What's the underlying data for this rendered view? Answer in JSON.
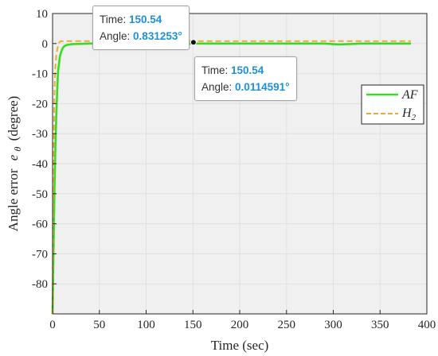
{
  "chart_data": {
    "type": "line",
    "xlabel": "Time (sec)",
    "ylabel_main": "Angle error",
    "ylabel_symbol": "e",
    "ylabel_subscript": "θ",
    "ylabel_unit": "(degree)",
    "xlim": [
      0,
      400
    ],
    "ylim": [
      -90,
      10
    ],
    "xticks": [
      0,
      50,
      100,
      150,
      200,
      250,
      300,
      350,
      400
    ],
    "yticks": [
      -80,
      -70,
      -60,
      -50,
      -40,
      -30,
      -20,
      -10,
      0,
      10
    ],
    "grid": true,
    "legend_position": "top-right",
    "series": [
      {
        "name": "AF",
        "color": "#33dd22",
        "style": "solid",
        "x": [
          0,
          1,
          2,
          3,
          4,
          5,
          6,
          8,
          10,
          12,
          15,
          20,
          40,
          80,
          100,
          115,
          150.54,
          200,
          250,
          290,
          306,
          330,
          383
        ],
        "y": [
          -90,
          -70,
          -50,
          -35,
          -24,
          -15,
          -9,
          -4,
          -2,
          -1,
          -0.5,
          -0.2,
          0,
          0,
          0,
          -0.3,
          0.0114591,
          0,
          0,
          0,
          -0.3,
          0,
          0
        ]
      },
      {
        "name": "H2",
        "legend_main": "H",
        "legend_subscript": "2",
        "color": "#f2a933",
        "style": "dashed",
        "x": [
          0,
          0.5,
          1,
          1.5,
          2,
          2.5,
          3,
          4,
          5,
          6,
          7,
          8,
          10,
          20,
          50,
          100,
          150.54,
          200,
          300,
          383
        ],
        "y": [
          -90,
          -60,
          -40,
          -27,
          -18,
          -12,
          -8,
          -4,
          -2,
          -0.5,
          0.3,
          0.7,
          0.83,
          0.83,
          0.83,
          0.83,
          0.831253,
          0.83,
          0.83,
          0.83
        ]
      }
    ],
    "datatips": [
      {
        "time_label": "Time:",
        "time_value": "150.54",
        "angle_label": "Angle:",
        "angle_value": "0.831253°"
      },
      {
        "time_label": "Time:",
        "time_value": "150.54",
        "angle_label": "Angle:",
        "angle_value": "0.0114591°"
      }
    ],
    "colors": {
      "axis": "#262626",
      "grid": "#e1e1e1",
      "background": "#f0f0f0"
    }
  }
}
